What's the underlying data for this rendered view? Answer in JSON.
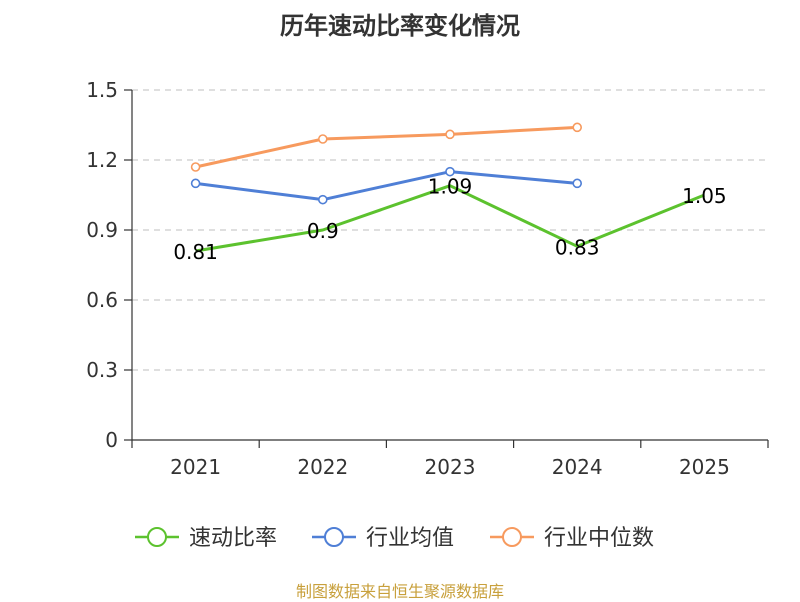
{
  "chart_data": {
    "type": "line",
    "title": "历年速动比率变化情况",
    "categories": [
      "2021",
      "2022",
      "2023",
      "2024",
      "2025"
    ],
    "ylim": [
      0,
      1.5
    ],
    "yticks": [
      0,
      0.3,
      0.6,
      0.9,
      1.2,
      1.5
    ],
    "ytick_labels": [
      "0",
      "0.3",
      "0.6",
      "0.9",
      "1.2",
      "1.5"
    ],
    "grid": true,
    "legend_position": "bottom",
    "series": [
      {
        "name": "速动比率",
        "color": "#5cc22e",
        "values": [
          0.81,
          0.9,
          1.09,
          0.83,
          1.05
        ],
        "data_labels": [
          "0.81",
          "0.9",
          "1.09",
          "0.83",
          "1.05"
        ]
      },
      {
        "name": "行业均值",
        "color": "#4f7fd6",
        "values": [
          1.1,
          1.03,
          1.15,
          1.1,
          null
        ]
      },
      {
        "name": "行业中位数",
        "color": "#f79a5e",
        "values": [
          1.17,
          1.29,
          1.31,
          1.34,
          null
        ]
      }
    ]
  },
  "footer": {
    "source": "制图数据来自恒生聚源数据库"
  }
}
